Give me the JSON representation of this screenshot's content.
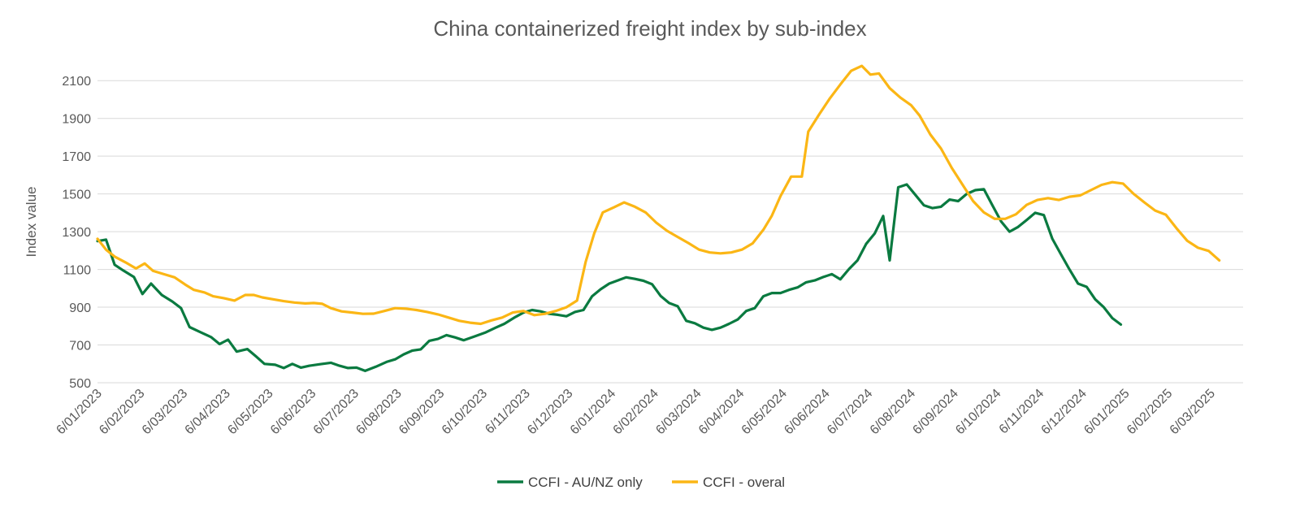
{
  "chart_data": {
    "type": "line",
    "title": "China containerized freight index by sub-index",
    "ylabel": "Index value",
    "xlabel": "",
    "ylim": [
      500,
      2200
    ],
    "yticks": [
      500,
      700,
      900,
      1100,
      1300,
      1500,
      1700,
      1900,
      2100
    ],
    "grid": true,
    "legend_position": "bottom",
    "x_ticks": [
      "6/01/2023",
      "6/02/2023",
      "6/03/2023",
      "6/04/2023",
      "6/05/2023",
      "6/06/2023",
      "6/07/2023",
      "6/08/2023",
      "6/09/2023",
      "6/10/2023",
      "6/11/2023",
      "6/12/2023",
      "6/01/2024",
      "6/02/2024",
      "6/03/2024",
      "6/04/2024",
      "6/05/2024",
      "6/06/2024",
      "6/07/2024",
      "6/08/2024",
      "6/09/2024",
      "6/10/2024",
      "6/11/2024",
      "6/12/2024",
      "6/01/2025",
      "6/02/2025",
      "6/03/2025"
    ],
    "series": [
      {
        "name": "CCFI - AU/NZ only",
        "color": "#0a7a40",
        "points": [
          [
            0,
            1250
          ],
          [
            0.2,
            1258
          ],
          [
            0.4,
            1125
          ],
          [
            0.6,
            1095
          ],
          [
            0.85,
            1060
          ],
          [
            1.05,
            970
          ],
          [
            1.25,
            1025
          ],
          [
            1.5,
            965
          ],
          [
            1.75,
            930
          ],
          [
            1.95,
            895
          ],
          [
            2.15,
            795
          ],
          [
            2.4,
            768
          ],
          [
            2.65,
            742
          ],
          [
            2.85,
            705
          ],
          [
            3.05,
            728
          ],
          [
            3.25,
            665
          ],
          [
            3.5,
            678
          ],
          [
            3.7,
            640
          ],
          [
            3.9,
            600
          ],
          [
            4.15,
            595
          ],
          [
            4.35,
            578
          ],
          [
            4.55,
            600
          ],
          [
            4.75,
            580
          ],
          [
            4.95,
            590
          ],
          [
            5.2,
            598
          ],
          [
            5.45,
            606
          ],
          [
            5.65,
            590
          ],
          [
            5.85,
            578
          ],
          [
            6.05,
            580
          ],
          [
            6.25,
            563
          ],
          [
            6.5,
            585
          ],
          [
            6.75,
            610
          ],
          [
            6.95,
            624
          ],
          [
            7.15,
            650
          ],
          [
            7.35,
            670
          ],
          [
            7.55,
            677
          ],
          [
            7.75,
            722
          ],
          [
            7.95,
            732
          ],
          [
            8.15,
            752
          ],
          [
            8.35,
            740
          ],
          [
            8.55,
            725
          ],
          [
            8.8,
            745
          ],
          [
            9.05,
            765
          ],
          [
            9.3,
            792
          ],
          [
            9.5,
            812
          ],
          [
            9.75,
            847
          ],
          [
            9.95,
            872
          ],
          [
            10.15,
            885
          ],
          [
            10.35,
            878
          ],
          [
            10.55,
            865
          ],
          [
            10.75,
            860
          ],
          [
            10.95,
            852
          ],
          [
            11.15,
            875
          ],
          [
            11.35,
            885
          ],
          [
            11.55,
            958
          ],
          [
            11.75,
            995
          ],
          [
            11.95,
            1025
          ],
          [
            12.15,
            1042
          ],
          [
            12.35,
            1058
          ],
          [
            12.55,
            1050
          ],
          [
            12.75,
            1040
          ],
          [
            12.95,
            1022
          ],
          [
            13.15,
            960
          ],
          [
            13.35,
            922
          ],
          [
            13.55,
            905
          ],
          [
            13.75,
            828
          ],
          [
            13.95,
            815
          ],
          [
            14.15,
            792
          ],
          [
            14.35,
            780
          ],
          [
            14.55,
            792
          ],
          [
            14.75,
            812
          ],
          [
            14.95,
            835
          ],
          [
            15.15,
            880
          ],
          [
            15.35,
            895
          ],
          [
            15.55,
            958
          ],
          [
            15.75,
            975
          ],
          [
            15.95,
            975
          ],
          [
            16.15,
            992
          ],
          [
            16.35,
            1005
          ],
          [
            16.55,
            1032
          ],
          [
            16.75,
            1042
          ],
          [
            16.95,
            1060
          ],
          [
            17.15,
            1075
          ],
          [
            17.35,
            1048
          ],
          [
            17.55,
            1102
          ],
          [
            17.75,
            1148
          ],
          [
            17.95,
            1235
          ],
          [
            18.15,
            1290
          ],
          [
            18.35,
            1383
          ],
          [
            18.5,
            1148
          ],
          [
            18.7,
            1535
          ],
          [
            18.9,
            1550
          ],
          [
            19.1,
            1495
          ],
          [
            19.3,
            1440
          ],
          [
            19.5,
            1425
          ],
          [
            19.7,
            1432
          ],
          [
            19.9,
            1470
          ],
          [
            20.1,
            1462
          ],
          [
            20.3,
            1500
          ],
          [
            20.5,
            1520
          ],
          [
            20.7,
            1525
          ],
          [
            20.9,
            1440
          ],
          [
            21.1,
            1355
          ],
          [
            21.3,
            1300
          ],
          [
            21.5,
            1325
          ],
          [
            21.7,
            1362
          ],
          [
            21.9,
            1400
          ],
          [
            22.1,
            1388
          ],
          [
            22.3,
            1262
          ],
          [
            22.5,
            1180
          ],
          [
            22.7,
            1100
          ],
          [
            22.9,
            1025
          ],
          [
            23.1,
            1008
          ],
          [
            23.3,
            942
          ],
          [
            23.5,
            900
          ],
          [
            23.7,
            842
          ],
          [
            23.9,
            808
          ]
        ]
      },
      {
        "name": "CCFI - overal",
        "color": "#fbb615",
        "points": [
          [
            0,
            1262
          ],
          [
            0.2,
            1205
          ],
          [
            0.4,
            1168
          ],
          [
            0.65,
            1138
          ],
          [
            0.9,
            1105
          ],
          [
            1.1,
            1132
          ],
          [
            1.3,
            1092
          ],
          [
            1.55,
            1075
          ],
          [
            1.8,
            1058
          ],
          [
            2.05,
            1020
          ],
          [
            2.25,
            992
          ],
          [
            2.5,
            978
          ],
          [
            2.7,
            958
          ],
          [
            2.95,
            948
          ],
          [
            3.2,
            935
          ],
          [
            3.45,
            965
          ],
          [
            3.65,
            965
          ],
          [
            3.85,
            952
          ],
          [
            4.1,
            942
          ],
          [
            4.35,
            932
          ],
          [
            4.6,
            925
          ],
          [
            4.85,
            920
          ],
          [
            5.05,
            922
          ],
          [
            5.25,
            918
          ],
          [
            5.45,
            895
          ],
          [
            5.7,
            878
          ],
          [
            5.95,
            872
          ],
          [
            6.2,
            865
          ],
          [
            6.45,
            866
          ],
          [
            6.7,
            880
          ],
          [
            6.95,
            895
          ],
          [
            7.2,
            892
          ],
          [
            7.45,
            885
          ],
          [
            7.7,
            875
          ],
          [
            7.95,
            862
          ],
          [
            8.2,
            845
          ],
          [
            8.45,
            828
          ],
          [
            8.7,
            818
          ],
          [
            8.95,
            812
          ],
          [
            9.2,
            830
          ],
          [
            9.45,
            845
          ],
          [
            9.7,
            872
          ],
          [
            9.95,
            880
          ],
          [
            10.2,
            858
          ],
          [
            10.45,
            865
          ],
          [
            10.7,
            880
          ],
          [
            10.95,
            900
          ],
          [
            11.2,
            935
          ],
          [
            11.4,
            1140
          ],
          [
            11.6,
            1290
          ],
          [
            11.8,
            1402
          ],
          [
            12.05,
            1428
          ],
          [
            12.3,
            1455
          ],
          [
            12.55,
            1432
          ],
          [
            12.8,
            1402
          ],
          [
            13.05,
            1348
          ],
          [
            13.3,
            1305
          ],
          [
            13.55,
            1272
          ],
          [
            13.8,
            1240
          ],
          [
            14.05,
            1205
          ],
          [
            14.3,
            1190
          ],
          [
            14.55,
            1185
          ],
          [
            14.8,
            1190
          ],
          [
            15.05,
            1205
          ],
          [
            15.3,
            1238
          ],
          [
            15.55,
            1310
          ],
          [
            15.75,
            1385
          ],
          [
            15.95,
            1488
          ],
          [
            16.2,
            1592
          ],
          [
            16.45,
            1592
          ],
          [
            16.6,
            1830
          ],
          [
            16.85,
            1920
          ],
          [
            17.1,
            2005
          ],
          [
            17.35,
            2080
          ],
          [
            17.6,
            2152
          ],
          [
            17.85,
            2178
          ],
          [
            18.05,
            2132
          ],
          [
            18.25,
            2138
          ],
          [
            18.5,
            2060
          ],
          [
            18.75,
            2010
          ],
          [
            19.0,
            1970
          ],
          [
            19.2,
            1915
          ],
          [
            19.45,
            1815
          ],
          [
            19.7,
            1740
          ],
          [
            19.95,
            1638
          ],
          [
            20.2,
            1550
          ],
          [
            20.45,
            1462
          ],
          [
            20.7,
            1402
          ],
          [
            20.95,
            1368
          ],
          [
            21.2,
            1368
          ],
          [
            21.45,
            1392
          ],
          [
            21.7,
            1442
          ],
          [
            21.95,
            1468
          ],
          [
            22.2,
            1478
          ],
          [
            22.45,
            1468
          ],
          [
            22.7,
            1485
          ],
          [
            22.95,
            1492
          ],
          [
            23.2,
            1520
          ],
          [
            23.45,
            1548
          ],
          [
            23.7,
            1562
          ],
          [
            23.95,
            1555
          ],
          [
            24.2,
            1500
          ],
          [
            24.45,
            1455
          ],
          [
            24.7,
            1412
          ],
          [
            24.95,
            1390
          ],
          [
            25.2,
            1318
          ],
          [
            25.45,
            1252
          ],
          [
            25.7,
            1215
          ],
          [
            25.95,
            1198
          ],
          [
            26.2,
            1148
          ]
        ]
      }
    ]
  }
}
